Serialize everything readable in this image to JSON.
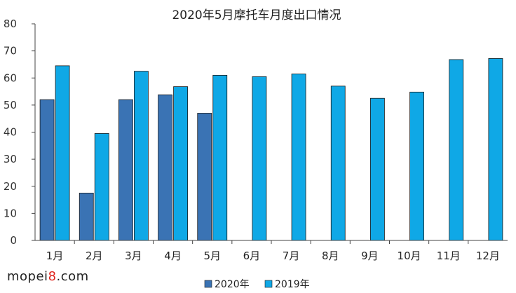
{
  "chart_data": {
    "type": "bar",
    "title": "2020年5月摩托车月度出口情况",
    "categories": [
      "1月",
      "2月",
      "3月",
      "4月",
      "5月",
      "6月",
      "7月",
      "8月",
      "9月",
      "10月",
      "11月",
      "12月"
    ],
    "series": [
      {
        "name": "2020年",
        "color": "#3a73b4",
        "values": [
          52,
          17.5,
          52,
          53.8,
          47,
          null,
          null,
          null,
          null,
          null,
          null,
          null
        ]
      },
      {
        "name": "2019年",
        "color": "#0fa8e6",
        "values": [
          64.5,
          39.5,
          62.5,
          56.8,
          61,
          60.5,
          61.5,
          57,
          52.5,
          54.8,
          66.8,
          67.2
        ]
      }
    ],
    "ylim": [
      0,
      80
    ],
    "yticks": [
      "0",
      "10",
      "20",
      "30",
      "40",
      "50",
      "60",
      "70",
      "80"
    ],
    "xlabel": "",
    "ylabel": "",
    "legend_position": "bottom",
    "grid": false
  },
  "watermark": {
    "prefix": "mopei",
    "accent": "8",
    "suffix": ".com"
  }
}
